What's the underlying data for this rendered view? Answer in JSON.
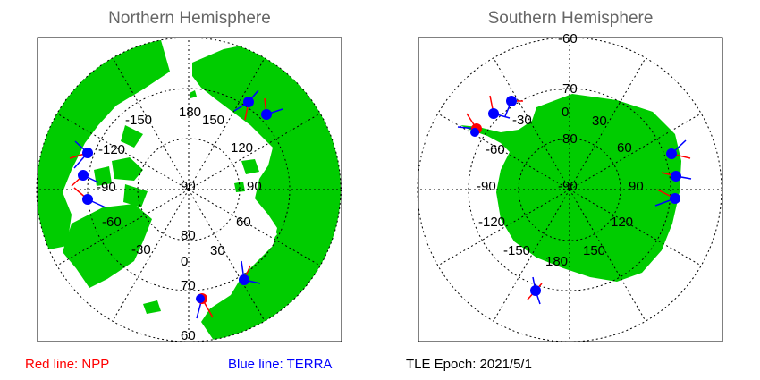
{
  "north": {
    "title": "Northern Hemisphere",
    "lon_labels": [
      "180",
      "150",
      "120",
      "90",
      "60",
      "30",
      "0",
      "-30",
      "-60",
      "-90",
      "-120",
      "-150"
    ],
    "lat_labels": [
      "90",
      "80",
      "70",
      "60"
    ]
  },
  "south": {
    "title": "Southern Hemisphere",
    "lon_labels": [
      "0",
      "30",
      "60",
      "90",
      "120",
      "150",
      "180",
      "-150",
      "-120",
      "-90",
      "-60",
      "-30"
    ],
    "lat_labels": [
      "-60",
      "-70",
      "-80",
      "-90"
    ]
  },
  "legend": {
    "npp": "Red line: NPP",
    "terra": "Blue line: TERRA",
    "epoch": "TLE Epoch: 2021/5/1"
  },
  "colors": {
    "land": "#00cc00",
    "npp": "#ff0000",
    "terra": "#0000ff",
    "grid": "#000000"
  }
}
